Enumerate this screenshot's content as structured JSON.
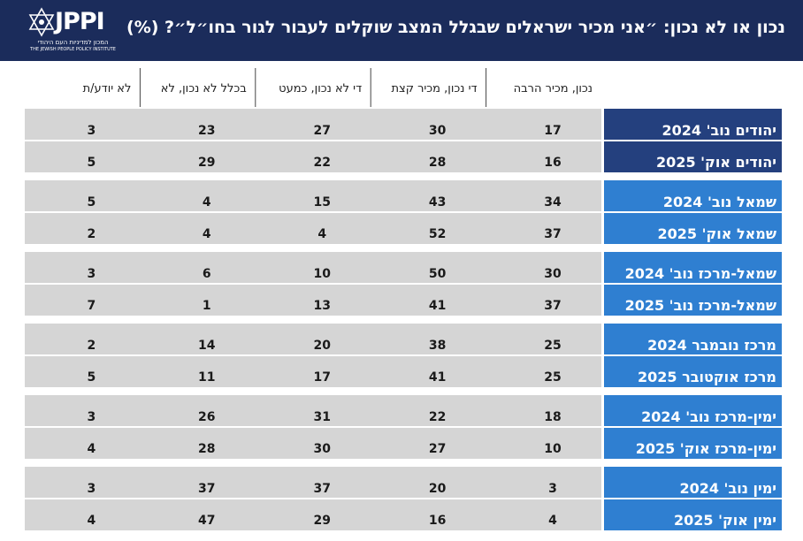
{
  "header": {
    "title": "נכון או לא נכון: ״אני מכיר ישראלים שבגלל המצב שוקלים לעבור לגור בחו״ל״? (%)",
    "logo_name": "JPPI",
    "logo_hebrew": "המכון למדיניות העם היהודי",
    "logo_english": "THE JEWISH PEOPLE POLICY INSTITUTE"
  },
  "colors": {
    "header_bg": "#1b2c5b",
    "label_dark": "#24407e",
    "label_light": "#2f7fd1",
    "cell_bg": "#d5d5d5",
    "divider": "#ffffff"
  },
  "chart_data": {
    "type": "table",
    "columns": [
      "נכון, מכיר הרבה",
      "די נכון, מכיר קצת",
      "די לא נכון, כמעט",
      "בכלל לא נכון, לא",
      "לא יודע/ת"
    ],
    "groups": [
      {
        "style": "dark",
        "rows": [
          {
            "label": "יהודים נוב' 2024",
            "values": [
              17,
              30,
              27,
              23,
              3
            ]
          },
          {
            "label": "יהודים אוק' 2025",
            "values": [
              16,
              28,
              22,
              29,
              5
            ]
          }
        ]
      },
      {
        "style": "light",
        "rows": [
          {
            "label": "שמאל נוב' 2024",
            "values": [
              34,
              43,
              15,
              4,
              5
            ]
          },
          {
            "label": "שמאל אוק' 2025",
            "values": [
              37,
              52,
              4,
              4,
              2
            ]
          }
        ]
      },
      {
        "style": "light",
        "rows": [
          {
            "label": "שמאל-מרכז נוב' 2024",
            "values": [
              30,
              50,
              10,
              6,
              3
            ]
          },
          {
            "label": "שמאל-מרכז נוב' 2025",
            "values": [
              37,
              41,
              13,
              1,
              7
            ]
          }
        ]
      },
      {
        "style": "light",
        "rows": [
          {
            "label": "מרכז נובמבר 2024",
            "values": [
              25,
              38,
              20,
              14,
              2
            ]
          },
          {
            "label": "מרכז אוקטובר 2025",
            "values": [
              25,
              41,
              17,
              11,
              5
            ]
          }
        ]
      },
      {
        "style": "light",
        "rows": [
          {
            "label": "ימין-מרכז נוב' 2024",
            "values": [
              18,
              22,
              31,
              26,
              3
            ]
          },
          {
            "label": "ימין-מרכז אוק' 2025",
            "values": [
              10,
              27,
              30,
              28,
              4
            ]
          }
        ]
      },
      {
        "style": "light",
        "rows": [
          {
            "label": "ימין נוב' 2024",
            "values": [
              3,
              20,
              37,
              37,
              3
            ]
          },
          {
            "label": "ימין אוק' 2025",
            "values": [
              4,
              16,
              29,
              47,
              4
            ]
          }
        ]
      }
    ]
  }
}
